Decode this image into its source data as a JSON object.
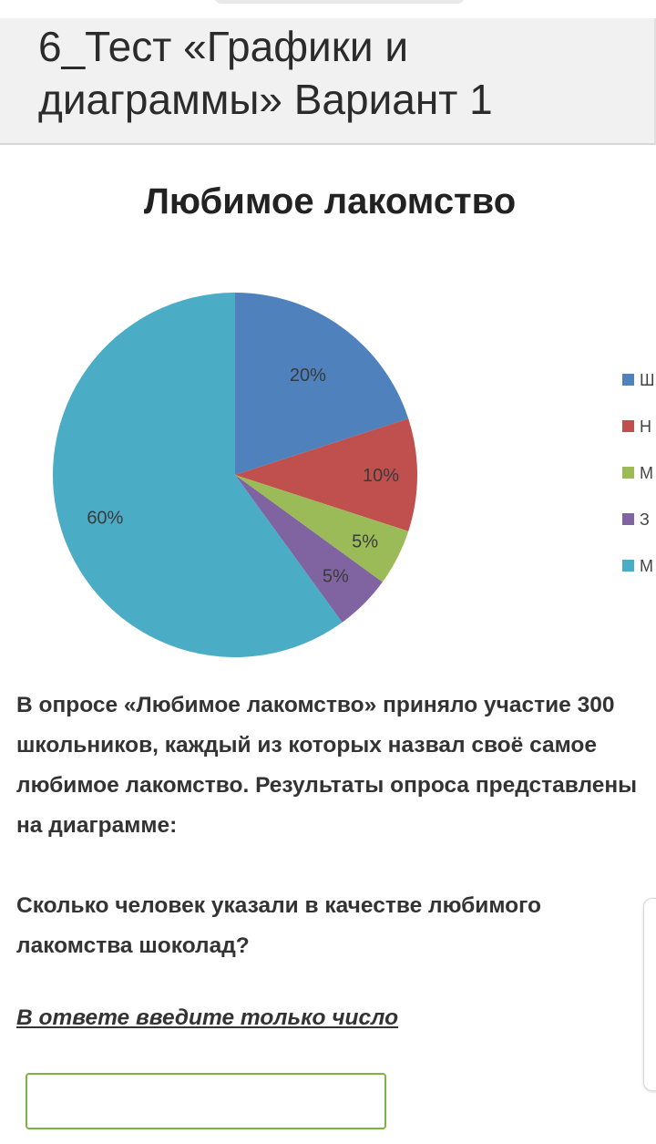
{
  "header": {
    "title": "6_Тест «Графики и диаграммы» Вариант 1"
  },
  "chart_data": {
    "type": "pie",
    "title": "Любимое лакомство",
    "start_angle_deg": 0,
    "direction": "clockwise",
    "slices": [
      {
        "value": 20,
        "label": "20%",
        "color": "#4f81bd",
        "legend": "Ш"
      },
      {
        "value": 10,
        "label": "10%",
        "color": "#c0504d",
        "legend": "Н"
      },
      {
        "value": 5,
        "label": "5%",
        "color": "#9bbb59",
        "legend": "М"
      },
      {
        "value": 5,
        "label": "5%",
        "color": "#8064a2",
        "legend": "З"
      },
      {
        "value": 60,
        "label": "60%",
        "color": "#4bacc6",
        "legend": "М"
      }
    ],
    "legend_position": "right"
  },
  "question": {
    "text1": "В опросе «Любимое лакомство» приняло участие 300 школьников, каждый из которых назвал своё самое любимое лакомство. Результаты опроса представлены на диаграмме:",
    "text2": "Сколько человек указали в качестве любимого лакомства шоколад?",
    "hint": "В ответе введите только число"
  },
  "answer": {
    "value": "",
    "placeholder": ""
  }
}
